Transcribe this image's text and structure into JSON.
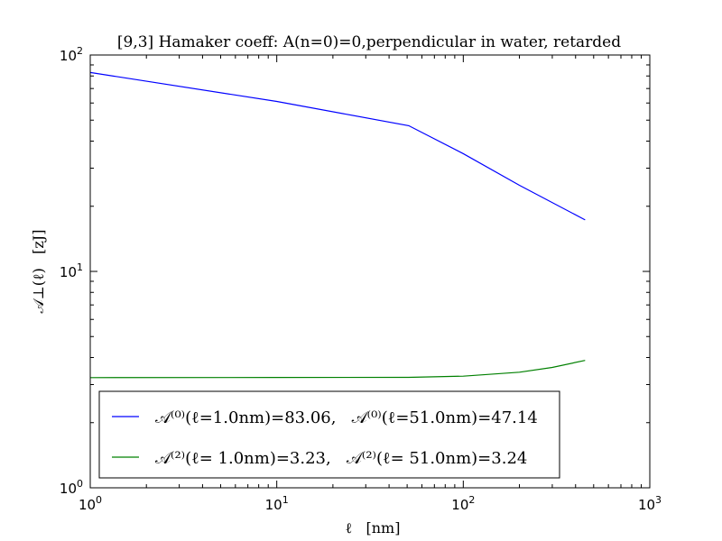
{
  "chart_data": {
    "type": "line",
    "title": "[9,3]  Hamaker coeff: A(n=0)=0,perpendicular in water, retarded",
    "xlabel": "ℓ   [nm]",
    "ylabel": "𝒜⊥(ℓ)   [zJ]",
    "xscale": "log",
    "yscale": "log",
    "xlim": [
      1,
      1000
    ],
    "ylim": [
      1,
      100
    ],
    "grid": false,
    "legend_position": "lower-left",
    "x_ticks": [
      {
        "value": 1,
        "label_base": "10",
        "label_exp": "0"
      },
      {
        "value": 10,
        "label_base": "10",
        "label_exp": "1"
      },
      {
        "value": 100,
        "label_base": "10",
        "label_exp": "2"
      },
      {
        "value": 1000,
        "label_base": "10",
        "label_exp": "3"
      }
    ],
    "y_ticks": [
      {
        "value": 1,
        "label_base": "10",
        "label_exp": "0"
      },
      {
        "value": 10,
        "label_base": "10",
        "label_exp": "1"
      },
      {
        "value": 100,
        "label_base": "10",
        "label_exp": "2"
      }
    ],
    "series": [
      {
        "color": "#0000ff",
        "legend_label": "𝒜⁽⁰⁾(ℓ=1.0nm)=83.06,   𝒜⁽⁰⁾(ℓ=51.0nm)=47.14",
        "points": [
          [
            1,
            83.06
          ],
          [
            10,
            61.0
          ],
          [
            51,
            47.14
          ],
          [
            100,
            35.0
          ],
          [
            200,
            25.0
          ],
          [
            450,
            17.3
          ]
        ]
      },
      {
        "color": "#008000",
        "legend_label": "𝒜⁽²⁾(ℓ= 1.0nm)=3.23,   𝒜⁽²⁾(ℓ= 51.0nm)=3.24",
        "points": [
          [
            1,
            3.23
          ],
          [
            10,
            3.235
          ],
          [
            51,
            3.24
          ],
          [
            100,
            3.28
          ],
          [
            200,
            3.42
          ],
          [
            300,
            3.6
          ],
          [
            450,
            3.88
          ]
        ]
      }
    ]
  }
}
